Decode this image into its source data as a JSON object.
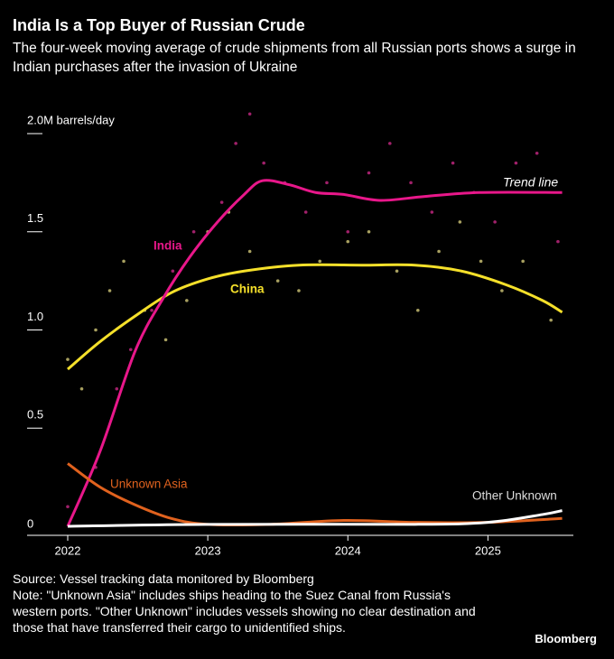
{
  "chart_data": {
    "type": "line",
    "title": "India Is a Top Buyer of Russian Crude",
    "subtitle": "The four-week moving average of crude shipments from all Russian ports shows a surge in Indian purchases after the invasion of Ukraine",
    "annotation": "Trend line",
    "source": "Source: Vessel tracking data monitored by Bloomberg",
    "note": "Note: \"Unknown Asia\" includes ships heading to the Suez Canal from Russia's western ports. \"Other Unknown\" includes vessels showing no clear destination and those that have transferred their cargo to unidentified ships.",
    "brand": "Bloomberg",
    "xlim": [
      2021.71,
      2025.61
    ],
    "xticks": [
      2022,
      2023,
      2024,
      2025
    ],
    "ylim": [
      0,
      2.0
    ],
    "yticks": [
      {
        "value": 2.0,
        "label": "2.0M barrels/day"
      },
      1.5,
      {
        "value": 1.0,
        "label": "1.0"
      },
      0.5,
      0
    ],
    "series": [
      {
        "name": "China",
        "color": "#f5e02a",
        "x": [
          2022.0,
          2022.23,
          2022.48,
          2022.74,
          2023.0,
          2023.26,
          2023.65,
          2024.1,
          2024.48,
          2024.81,
          2025.13,
          2025.39,
          2025.53
        ],
        "values": [
          0.8,
          0.94,
          1.07,
          1.19,
          1.26,
          1.3,
          1.33,
          1.33,
          1.33,
          1.3,
          1.23,
          1.15,
          1.09
        ],
        "dots": {
          "color": "#a8a060",
          "x": [
            2022.0,
            2022.1,
            2022.2,
            2022.3,
            2022.4,
            2022.55,
            2022.7,
            2022.85,
            2023.0,
            2023.15,
            2023.3,
            2023.5,
            2023.65,
            2023.8,
            2024.0,
            2024.15,
            2024.35,
            2024.5,
            2024.65,
            2024.8,
            2024.95,
            2025.1,
            2025.25,
            2025.45
          ],
          "values": [
            0.85,
            0.7,
            1.0,
            1.2,
            1.35,
            1.1,
            0.95,
            1.15,
            1.5,
            1.6,
            1.4,
            1.25,
            1.2,
            1.35,
            1.45,
            1.5,
            1.3,
            1.1,
            1.4,
            1.55,
            1.35,
            1.2,
            1.35,
            1.05
          ]
        }
      },
      {
        "name": "India",
        "color": "#e8178a",
        "x": [
          2022.0,
          2022.23,
          2022.48,
          2022.68,
          2022.87,
          2023.07,
          2023.26,
          2023.39,
          2023.58,
          2023.77,
          2023.97,
          2024.23,
          2024.55,
          2024.94,
          2025.53
        ],
        "values": [
          0.0,
          0.38,
          0.89,
          1.16,
          1.37,
          1.55,
          1.69,
          1.76,
          1.74,
          1.7,
          1.69,
          1.66,
          1.68,
          1.7,
          1.7
        ],
        "dots": {
          "color": "#a0206a",
          "x": [
            2022.0,
            2022.2,
            2022.35,
            2022.45,
            2022.6,
            2022.75,
            2022.9,
            2023.1,
            2023.2,
            2023.3,
            2023.4,
            2023.55,
            2023.7,
            2023.85,
            2024.0,
            2024.15,
            2024.3,
            2024.45,
            2024.6,
            2024.75,
            2024.9,
            2025.05,
            2025.2,
            2025.35,
            2025.5
          ],
          "values": [
            0.1,
            0.3,
            0.7,
            0.9,
            1.1,
            1.3,
            1.5,
            1.65,
            1.95,
            2.1,
            1.85,
            1.75,
            1.6,
            1.75,
            1.5,
            1.8,
            1.95,
            1.75,
            1.6,
            1.85,
            1.7,
            1.55,
            1.85,
            1.9,
            1.45
          ]
        }
      },
      {
        "name": "Unknown Asia",
        "color": "#e0621e",
        "x": [
          2022.0,
          2022.23,
          2022.48,
          2022.74,
          2023.0,
          2023.45,
          2023.97,
          2024.48,
          2025.0,
          2025.53
        ],
        "values": [
          0.32,
          0.2,
          0.11,
          0.04,
          0.01,
          0.01,
          0.03,
          0.02,
          0.02,
          0.04
        ]
      },
      {
        "name": "Other Unknown",
        "color": "#ffffff",
        "x": [
          2022.0,
          2023.0,
          2024.48,
          2025.0,
          2025.39,
          2025.53
        ],
        "values": [
          0.0,
          0.01,
          0.01,
          0.02,
          0.06,
          0.08
        ]
      }
    ]
  }
}
